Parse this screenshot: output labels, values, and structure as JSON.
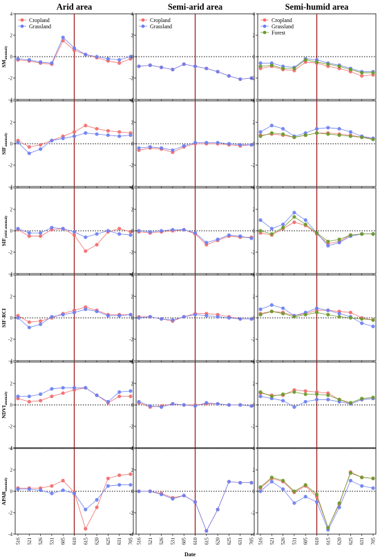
{
  "columns": [
    "Arid area",
    "Semi-arid area",
    "Semi-humid area"
  ],
  "x_label": "Date",
  "x_ticks": [
    "516",
    "521",
    "526",
    "531",
    "605",
    "610",
    "615",
    "620",
    "625",
    "631",
    "705"
  ],
  "y_ticks": [
    "-4",
    "-2",
    "0",
    "2",
    "4"
  ],
  "rows": [
    {
      "label_main": "SM",
      "label_sub": "anomaly"
    },
    {
      "label_main": "SIF",
      "label_sub": "anomaly"
    },
    {
      "label_main": "SIF",
      "label_sub": "yield anomaly"
    },
    {
      "label_main": "SIF-RCI",
      "label_sub": ""
    },
    {
      "label_main": "NDVI",
      "label_sub": "anomaly"
    },
    {
      "label_main": "APAR",
      "label_sub": "anomaly"
    }
  ],
  "legends": [
    [
      "Cropland",
      "Grassland"
    ],
    [
      "Cropland",
      "Grassland"
    ],
    [
      "Cropland",
      "Grassland",
      "Forest"
    ]
  ],
  "colors": {
    "Cropland": "#f26b6b",
    "Grassland": "#6b7ff2",
    "Forest": "#6b9a2a",
    "vline": "#9b1b1b"
  },
  "chart_data": {
    "type": "line",
    "x": [
      "516",
      "521",
      "526",
      "531",
      "605",
      "610",
      "615",
      "620",
      "625",
      "631",
      "705"
    ],
    "ylim": [
      -4,
      4
    ],
    "vline_at": "610",
    "panels": [
      {
        "row": "SM_anomaly",
        "col": "Arid area",
        "series": [
          {
            "name": "Cropland",
            "values": [
              -0.3,
              -0.4,
              -0.6,
              -0.7,
              1.5,
              0.6,
              0.2,
              -0.1,
              -0.4,
              -0.6,
              -0.2
            ]
          },
          {
            "name": "Grassland",
            "values": [
              -0.2,
              -0.3,
              -0.5,
              -0.6,
              1.8,
              0.8,
              0.2,
              0.0,
              -0.2,
              -0.3,
              0.0
            ]
          }
        ]
      },
      {
        "row": "SM_anomaly",
        "col": "Semi-arid area",
        "series": [
          {
            "name": "Cropland",
            "values": [
              -0.9,
              -0.8,
              -1.0,
              -1.2,
              -0.7,
              -0.9,
              -1.1,
              -1.4,
              -1.8,
              -2.1,
              -2.0
            ]
          },
          {
            "name": "Grassland",
            "values": [
              -0.9,
              -0.8,
              -1.0,
              -1.2,
              -0.7,
              -0.9,
              -1.1,
              -1.4,
              -1.8,
              -2.1,
              -2.0
            ]
          }
        ]
      },
      {
        "row": "SM_anomaly",
        "col": "Semi-humid area",
        "series": [
          {
            "name": "Cropland",
            "values": [
              -1.1,
              -0.9,
              -1.2,
              -1.3,
              -0.5,
              -0.6,
              -0.9,
              -1.1,
              -1.4,
              -1.8,
              -1.7
            ]
          },
          {
            "name": "Grassland",
            "values": [
              -0.6,
              -0.6,
              -0.9,
              -1.0,
              -0.2,
              -0.3,
              -0.6,
              -0.8,
              -1.1,
              -1.4,
              -1.4
            ]
          },
          {
            "name": "Forest",
            "values": [
              -0.9,
              -0.8,
              -1.1,
              -1.1,
              -0.3,
              -0.5,
              -0.7,
              -0.9,
              -1.2,
              -1.5,
              -1.5
            ]
          }
        ]
      },
      {
        "row": "SIF_anomaly",
        "col": "Arid area",
        "series": [
          {
            "name": "Cropland",
            "values": [
              0.3,
              -0.3,
              -0.1,
              0.3,
              0.7,
              1.1,
              1.7,
              1.4,
              1.2,
              1.1,
              1.0
            ]
          },
          {
            "name": "Grassland",
            "values": [
              0.1,
              -0.9,
              -0.5,
              0.3,
              0.5,
              0.7,
              1.0,
              0.9,
              0.8,
              0.7,
              0.8
            ]
          }
        ]
      },
      {
        "row": "SIF_anomaly",
        "col": "Semi-arid area",
        "series": [
          {
            "name": "Cropland",
            "values": [
              -0.6,
              -0.4,
              -0.5,
              -0.8,
              -0.3,
              0.0,
              0.0,
              0.0,
              -0.1,
              -0.2,
              -0.1
            ]
          },
          {
            "name": "Grassland",
            "values": [
              -0.4,
              -0.3,
              -0.4,
              -0.6,
              -0.2,
              0.1,
              0.1,
              0.1,
              0.0,
              -0.1,
              -0.1
            ]
          }
        ]
      },
      {
        "row": "SIF_anomaly",
        "col": "Semi-humid area",
        "series": [
          {
            "name": "Cropland",
            "values": [
              0.8,
              0.9,
              0.8,
              0.6,
              0.8,
              1.0,
              1.0,
              0.9,
              0.8,
              0.6,
              0.5
            ]
          },
          {
            "name": "Grassland",
            "values": [
              1.1,
              1.7,
              1.4,
              0.7,
              1.0,
              1.4,
              1.5,
              1.4,
              1.1,
              0.7,
              0.5
            ]
          },
          {
            "name": "Forest",
            "values": [
              0.7,
              1.0,
              0.9,
              0.6,
              0.8,
              1.0,
              0.9,
              0.8,
              0.7,
              0.6,
              0.4
            ]
          }
        ]
      },
      {
        "row": "SIFyield_anomaly",
        "col": "Arid area",
        "series": [
          {
            "name": "Cropland",
            "values": [
              0.1,
              -0.5,
              -0.5,
              0.1,
              0.2,
              -0.4,
              -1.9,
              -1.3,
              -0.1,
              0.2,
              -0.1
            ]
          },
          {
            "name": "Grassland",
            "values": [
              0.2,
              -0.2,
              -0.2,
              0.3,
              0.2,
              -0.1,
              -0.6,
              -0.3,
              0.0,
              -0.3,
              -0.4
            ]
          }
        ]
      },
      {
        "row": "SIFyield_anomaly",
        "col": "Semi-arid area",
        "series": [
          {
            "name": "Cropland",
            "values": [
              -0.1,
              -0.2,
              -0.1,
              0.0,
              0.1,
              -0.3,
              -1.3,
              -0.9,
              -0.5,
              -0.6,
              -0.6
            ]
          },
          {
            "name": "Grassland",
            "values": [
              0.0,
              -0.1,
              0.0,
              0.1,
              0.1,
              -0.2,
              -1.1,
              -0.8,
              -0.4,
              -0.5,
              -0.7
            ]
          }
        ]
      },
      {
        "row": "SIFyield_anomaly",
        "col": "Semi-humid area",
        "series": [
          {
            "name": "Cropland",
            "values": [
              -0.2,
              -0.4,
              0.2,
              0.8,
              0.5,
              -0.3,
              -1.2,
              -1.0,
              -0.4,
              -0.3,
              -0.3
            ]
          },
          {
            "name": "Grassland",
            "values": [
              1.0,
              0.2,
              0.6,
              1.7,
              1.0,
              -0.2,
              -1.4,
              -1.1,
              -0.5,
              -0.3,
              -0.3
            ]
          },
          {
            "name": "Forest",
            "values": [
              0.0,
              -0.3,
              0.3,
              1.3,
              0.6,
              -0.2,
              -1.0,
              -0.8,
              -0.4,
              -0.3,
              -0.3
            ]
          }
        ]
      },
      {
        "row": "SIF-RCI",
        "col": "Arid area",
        "series": [
          {
            "name": "Cropland",
            "values": [
              0.2,
              -0.4,
              -0.3,
              0.0,
              0.4,
              0.7,
              1.0,
              0.7,
              0.3,
              0.3,
              0.3
            ]
          },
          {
            "name": "Grassland",
            "values": [
              0.0,
              -0.9,
              -0.6,
              0.1,
              0.3,
              0.5,
              0.8,
              0.6,
              0.2,
              0.2,
              0.3
            ]
          }
        ]
      },
      {
        "row": "SIF-RCI",
        "col": "Semi-arid area",
        "series": [
          {
            "name": "Cropland",
            "values": [
              0.1,
              0.1,
              -0.1,
              -0.3,
              0.1,
              0.4,
              0.4,
              0.3,
              0.1,
              -0.1,
              -0.1
            ]
          },
          {
            "name": "Grassland",
            "values": [
              0.0,
              0.1,
              -0.1,
              -0.2,
              0.1,
              0.3,
              0.2,
              0.1,
              0.0,
              -0.1,
              -0.1
            ]
          }
        ]
      },
      {
        "row": "SIF-RCI",
        "col": "Semi-humid area",
        "series": [
          {
            "name": "Cropland",
            "values": [
              0.4,
              0.6,
              0.5,
              0.2,
              0.4,
              0.7,
              0.7,
              0.6,
              0.5,
              0.0,
              -0.2
            ]
          },
          {
            "name": "Grassland",
            "values": [
              0.8,
              1.2,
              0.9,
              0.2,
              0.5,
              0.9,
              0.7,
              0.4,
              0.1,
              -0.5,
              -0.8
            ]
          },
          {
            "name": "Forest",
            "values": [
              0.3,
              0.6,
              0.4,
              0.1,
              0.3,
              0.5,
              0.3,
              0.1,
              0.0,
              -0.1,
              -0.2
            ]
          }
        ]
      },
      {
        "row": "NDVI_anomaly",
        "col": "Arid area",
        "series": [
          {
            "name": "Cropland",
            "values": [
              0.6,
              0.3,
              0.4,
              0.8,
              1.1,
              1.4,
              1.6,
              0.9,
              0.2,
              0.8,
              0.8
            ]
          },
          {
            "name": "Grassland",
            "values": [
              0.8,
              0.8,
              1.0,
              1.5,
              1.6,
              1.6,
              1.6,
              0.9,
              0.3,
              1.2,
              1.3
            ]
          }
        ]
      },
      {
        "row": "NDVI_anomaly",
        "col": "Semi-arid area",
        "series": [
          {
            "name": "Cropland",
            "values": [
              0.2,
              -0.2,
              -0.1,
              0.1,
              0.0,
              0.0,
              0.1,
              0.1,
              0.0,
              0.0,
              -0.1
            ]
          },
          {
            "name": "Grassland",
            "values": [
              0.3,
              -0.1,
              -0.2,
              0.1,
              0.0,
              -0.1,
              0.2,
              0.1,
              0.0,
              0.0,
              -0.1
            ]
          }
        ]
      },
      {
        "row": "NDVI_anomaly",
        "col": "Semi-humid area",
        "series": [
          {
            "name": "Cropland",
            "values": [
              1.1,
              0.9,
              0.9,
              1.4,
              1.3,
              1.2,
              1.1,
              0.5,
              0.1,
              0.5,
              0.6
            ]
          },
          {
            "name": "Grassland",
            "values": [
              0.8,
              0.6,
              0.4,
              -0.2,
              0.3,
              0.5,
              0.5,
              0.3,
              0.1,
              0.5,
              0.6
            ]
          },
          {
            "name": "Forest",
            "values": [
              1.2,
              0.8,
              1.0,
              1.2,
              1.0,
              1.0,
              0.9,
              0.5,
              0.2,
              0.6,
              0.7
            ]
          }
        ]
      },
      {
        "row": "APAR_anomaly",
        "col": "Arid area",
        "series": [
          {
            "name": "Cropland",
            "values": [
              0.3,
              0.3,
              0.3,
              0.5,
              1.0,
              -0.1,
              -3.5,
              -1.5,
              1.2,
              1.5,
              1.6
            ]
          },
          {
            "name": "Grassland",
            "values": [
              0.2,
              0.2,
              0.1,
              -0.2,
              0.1,
              -0.2,
              -1.7,
              -0.8,
              0.5,
              0.6,
              0.6
            ]
          }
        ]
      },
      {
        "row": "APAR_anomaly",
        "col": "Semi-arid area",
        "series": [
          {
            "name": "Cropland",
            "values": [
              0.0,
              0.0,
              -0.2,
              -0.6,
              -0.4,
              -1.0,
              -3.7,
              -1.7,
              0.9,
              0.8,
              0.8
            ]
          },
          {
            "name": "Grassland",
            "values": [
              0.0,
              0.0,
              -0.3,
              -0.7,
              -0.4,
              -1.0,
              -3.7,
              -1.7,
              0.9,
              0.8,
              0.8
            ]
          }
        ]
      },
      {
        "row": "APAR_anomaly",
        "col": "Semi-humid area",
        "series": [
          {
            "name": "Cropland",
            "values": [
              0.3,
              1.2,
              0.9,
              -0.1,
              0.5,
              -0.5,
              -3.4,
              -1.2,
              1.8,
              1.3,
              1.2
            ]
          },
          {
            "name": "Grassland",
            "values": [
              0.0,
              0.9,
              0.2,
              -1.1,
              -0.5,
              -1.0,
              -3.6,
              -1.5,
              1.0,
              0.5,
              0.3
            ]
          },
          {
            "name": "Forest",
            "values": [
              0.4,
              1.3,
              1.0,
              0.0,
              0.6,
              -0.3,
              -3.4,
              -1.1,
              1.7,
              1.3,
              1.2
            ]
          }
        ]
      }
    ]
  }
}
